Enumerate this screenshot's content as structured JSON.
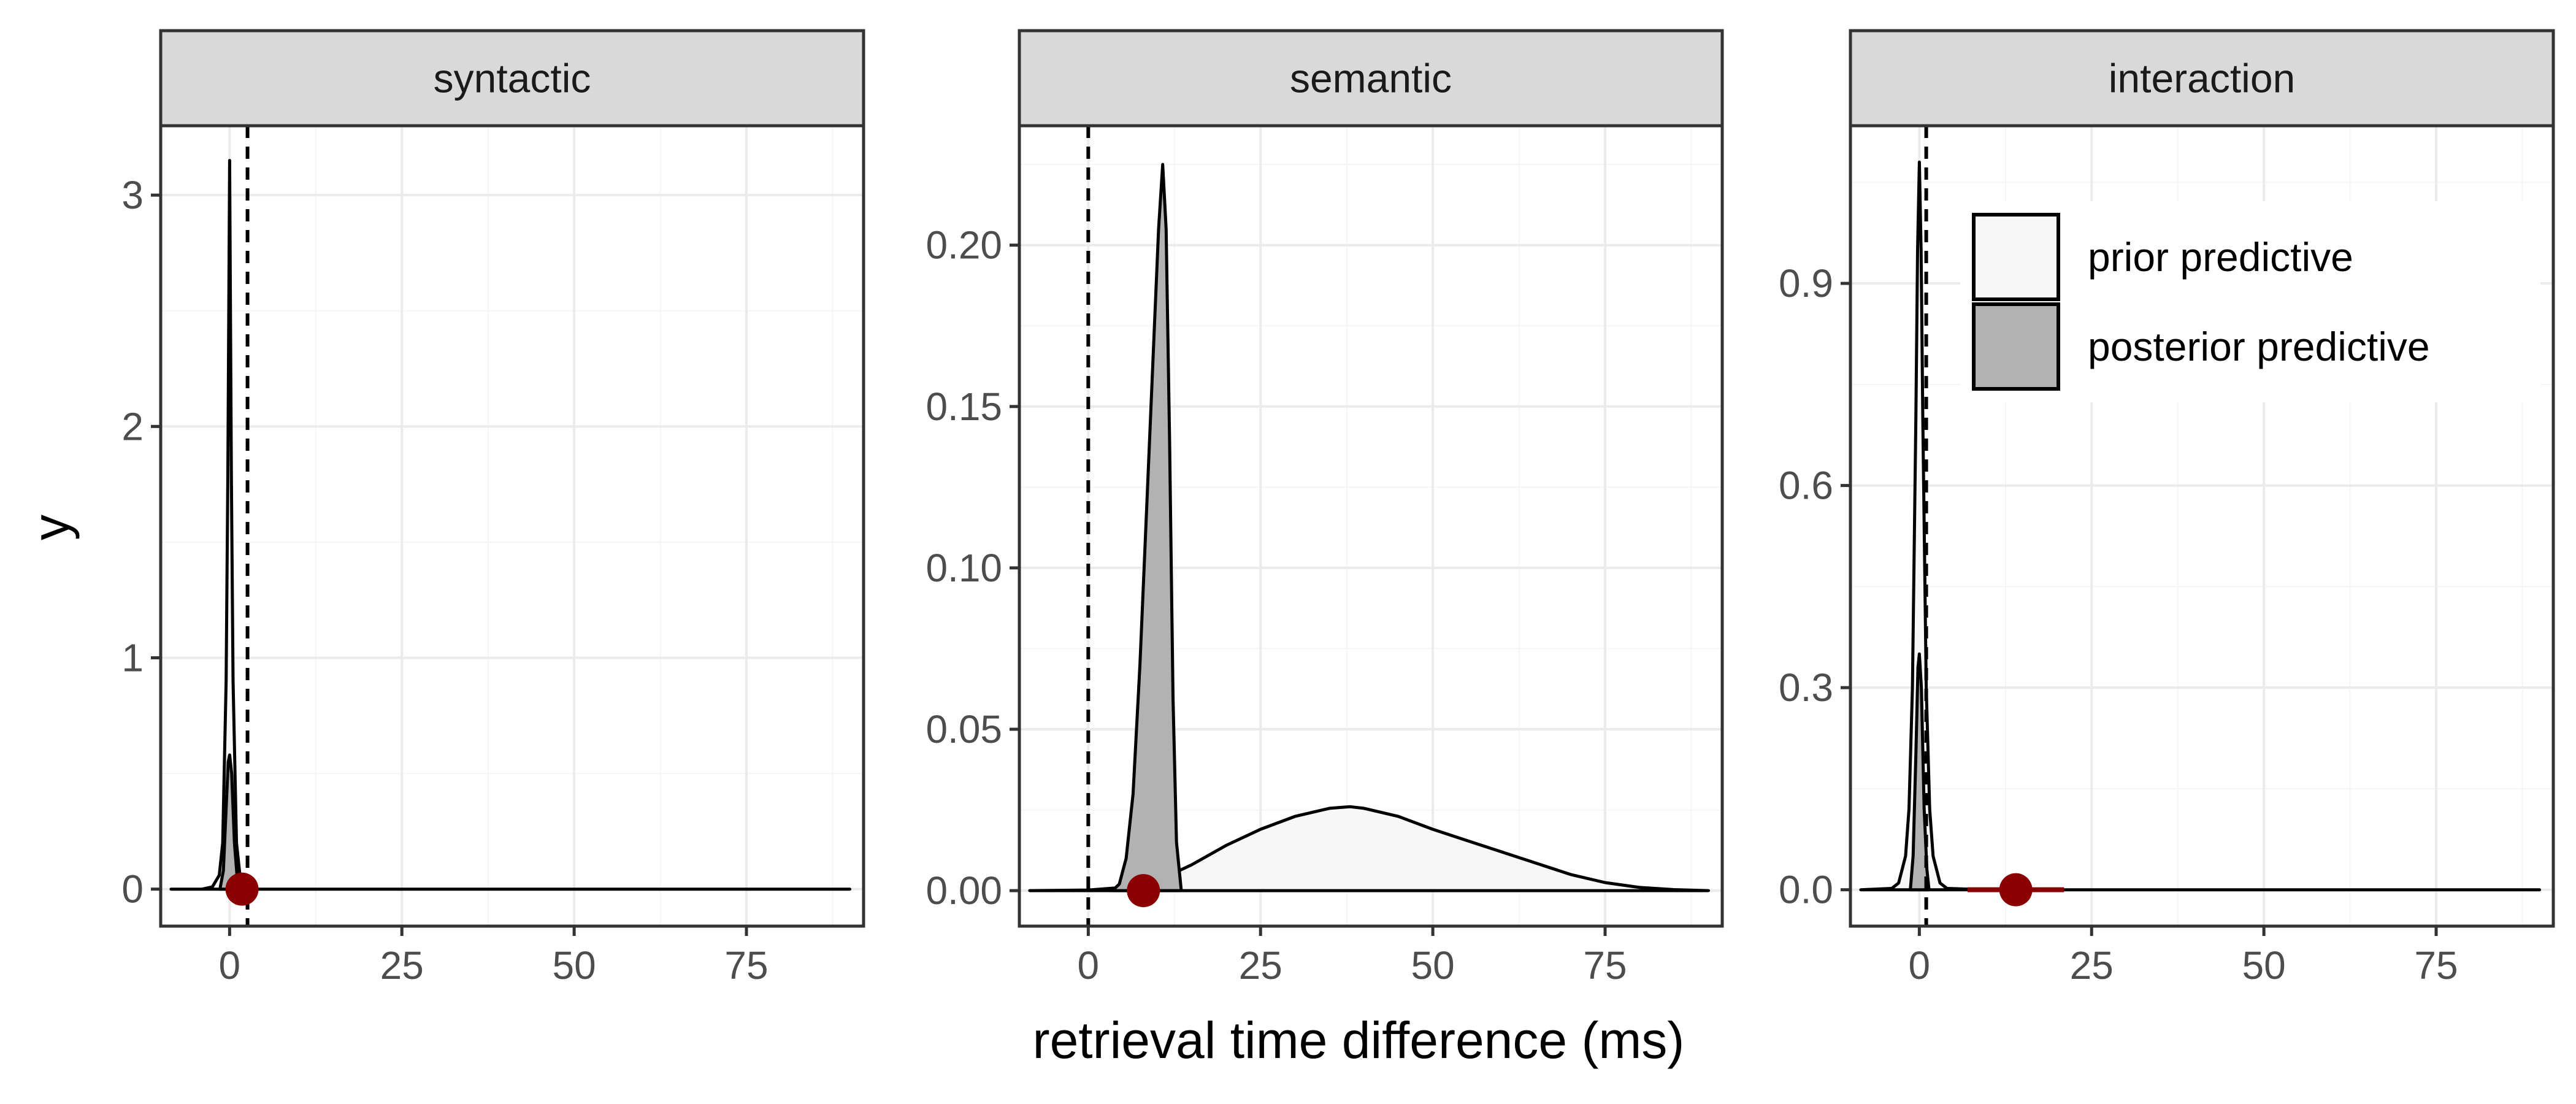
{
  "chart_data": {
    "type": "area",
    "xlabel": "retrieval time difference (ms)",
    "ylabel": "y",
    "grid": true,
    "legend": {
      "placement": "top-right of interaction panel",
      "entries": [
        {
          "label": "prior predictive",
          "fill": "#f7f7f7"
        },
        {
          "label": "posterior predictive",
          "fill": "#b2b2b2"
        }
      ]
    },
    "colors": {
      "outline": "#000000",
      "point": "#8b0000",
      "panel_border": "#333333",
      "strip_fill": "#d9d9d9",
      "grid_major": "#ebebeb"
    },
    "panels": [
      {
        "strip": "syntactic",
        "xlim": [
          -10,
          92
        ],
        "ylim": [
          -0.16,
          3.3
        ],
        "x_ticks": [
          0,
          25,
          50,
          75
        ],
        "x_tick_labels": [
          "0",
          "25",
          "50",
          "75"
        ],
        "y_ticks": [
          0,
          1,
          2,
          3
        ],
        "y_tick_labels": [
          "0",
          "1",
          "2",
          "3"
        ],
        "vline": 2.6,
        "observed": {
          "x": 1.8,
          "y": 0,
          "ci": [
            0.5,
            3.2
          ]
        },
        "prior": {
          "points": [
            [
              -8.5,
              0
            ],
            [
              -4,
              0
            ],
            [
              -2.5,
              0.01
            ],
            [
              -1.5,
              0.06
            ],
            [
              -1,
              0.2
            ],
            [
              -0.5,
              0.9
            ],
            [
              -0.25,
              1.8
            ],
            [
              0,
              3.15
            ],
            [
              0.25,
              1.8
            ],
            [
              0.5,
              0.9
            ],
            [
              1,
              0.2
            ],
            [
              1.5,
              0.06
            ],
            [
              2.5,
              0.01
            ],
            [
              4,
              0
            ],
            [
              10,
              0
            ],
            [
              30,
              0
            ],
            [
              60,
              0
            ],
            [
              90,
              0
            ]
          ]
        },
        "posterior": {
          "points": [
            [
              -1.4,
              0
            ],
            [
              -0.9,
              0.08
            ],
            [
              -0.5,
              0.35
            ],
            [
              -0.2,
              0.55
            ],
            [
              0,
              0.58
            ],
            [
              0.3,
              0.5
            ],
            [
              0.7,
              0.2
            ],
            [
              1.1,
              0.05
            ],
            [
              1.4,
              0
            ]
          ]
        }
      },
      {
        "strip": "semantic",
        "xlim": [
          -10,
          92
        ],
        "ylim": [
          -0.011,
          0.237
        ],
        "x_ticks": [
          0,
          25,
          50,
          75
        ],
        "x_tick_labels": [
          "0",
          "25",
          "50",
          "75"
        ],
        "y_ticks": [
          0,
          0.05,
          0.1,
          0.15,
          0.2
        ],
        "y_tick_labels": [
          "0.00",
          "0.05",
          "0.10",
          "0.15",
          "0.20"
        ],
        "vline": 0,
        "observed": {
          "x": 8,
          "y": 0,
          "ci": [
            6.5,
            9.5
          ]
        },
        "prior": {
          "points": [
            [
              -8.5,
              0
            ],
            [
              0,
              0.0002
            ],
            [
              5,
              0.001
            ],
            [
              10,
              0.003
            ],
            [
              15,
              0.008
            ],
            [
              20,
              0.014
            ],
            [
              25,
              0.019
            ],
            [
              30,
              0.023
            ],
            [
              35,
              0.0255
            ],
            [
              38,
              0.026
            ],
            [
              40,
              0.0255
            ],
            [
              45,
              0.023
            ],
            [
              50,
              0.019
            ],
            [
              55,
              0.0155
            ],
            [
              60,
              0.012
            ],
            [
              65,
              0.0085
            ],
            [
              70,
              0.005
            ],
            [
              75,
              0.0025
            ],
            [
              80,
              0.001
            ],
            [
              85,
              0.0003
            ],
            [
              90,
              0
            ]
          ]
        },
        "posterior": {
          "points": [
            [
              3.5,
              0
            ],
            [
              4.5,
              0.002
            ],
            [
              5.5,
              0.01
            ],
            [
              6.5,
              0.03
            ],
            [
              7.5,
              0.07
            ],
            [
              8.5,
              0.12
            ],
            [
              9.5,
              0.17
            ],
            [
              10.2,
              0.205
            ],
            [
              10.8,
              0.225
            ],
            [
              11.3,
              0.205
            ],
            [
              11.8,
              0.14
            ],
            [
              12.3,
              0.06
            ],
            [
              12.8,
              0.015
            ],
            [
              13.5,
              0
            ]
          ]
        }
      },
      {
        "strip": "interaction",
        "xlim": [
          -10,
          92
        ],
        "ylim": [
          -0.054,
          1.134
        ],
        "x_ticks": [
          0,
          25,
          50,
          75
        ],
        "x_tick_labels": [
          "0",
          "25",
          "50",
          "75"
        ],
        "y_ticks": [
          0,
          0.3,
          0.6,
          0.9
        ],
        "y_tick_labels": [
          "0.0",
          "0.3",
          "0.6",
          "0.9"
        ],
        "vline": 1,
        "observed": {
          "x": 14,
          "y": 0,
          "ci": [
            7,
            21
          ]
        },
        "prior": {
          "points": [
            [
              -8.5,
              0
            ],
            [
              -4,
              0.002
            ],
            [
              -3,
              0.01
            ],
            [
              -2,
              0.05
            ],
            [
              -1.5,
              0.12
            ],
            [
              -1,
              0.3
            ],
            [
              -0.5,
              0.7
            ],
            [
              -0.25,
              0.95
            ],
            [
              0,
              1.08
            ],
            [
              0.25,
              0.95
            ],
            [
              0.5,
              0.7
            ],
            [
              1,
              0.3
            ],
            [
              1.5,
              0.12
            ],
            [
              2,
              0.05
            ],
            [
              3,
              0.01
            ],
            [
              4,
              0.002
            ],
            [
              10,
              0
            ],
            [
              30,
              0
            ],
            [
              60,
              0
            ],
            [
              90,
              0
            ]
          ]
        },
        "posterior": {
          "points": [
            [
              -1.3,
              0
            ],
            [
              -0.9,
              0.05
            ],
            [
              -0.5,
              0.2
            ],
            [
              -0.2,
              0.33
            ],
            [
              0,
              0.35
            ],
            [
              0.3,
              0.3
            ],
            [
              0.7,
              0.12
            ],
            [
              1.1,
              0.03
            ],
            [
              1.4,
              0
            ]
          ]
        }
      }
    ]
  }
}
